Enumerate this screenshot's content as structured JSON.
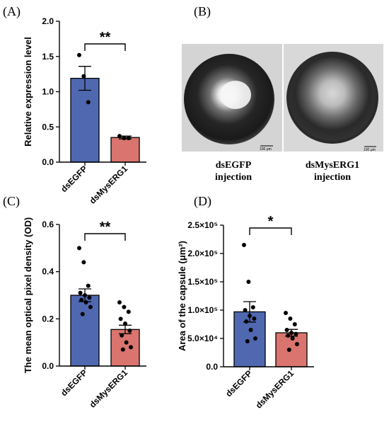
{
  "panel_labels": [
    "(A)",
    "(B)",
    "(C)",
    "(D)"
  ],
  "images": {
    "left_caption_line1": "dsEGFP",
    "left_caption_line2": "injection",
    "right_caption_line1": "dsMysERG1",
    "right_caption_line2": "injection",
    "left_scalebar_text": "100 μm",
    "right_scalebar_text": "100 μm"
  },
  "colors": {
    "blue": "#4f68b0",
    "red": "#d9756e",
    "outline": "#000000"
  },
  "chart_data": [
    {
      "panel": "(A)",
      "type": "bar",
      "categories": [
        "dsEGFP",
        "dsMysERG1"
      ],
      "values": [
        1.19,
        0.35
      ],
      "errors": [
        0.17,
        0.02
      ],
      "points": [
        [
          1.52,
          1.22,
          0.85
        ],
        [
          0.37,
          0.34,
          0.34
        ]
      ],
      "ylabel": "Relative expression level",
      "ylim": [
        0,
        2.0
      ],
      "yticks": [
        0,
        0.5,
        1.0,
        1.5,
        2.0
      ],
      "ytick_labels": [
        "0.0",
        "0.5",
        "1.0",
        "1.5",
        "2.0"
      ],
      "significance": "**",
      "colors": [
        "#4f68b0",
        "#d9756e"
      ]
    },
    {
      "panel": "(C)",
      "type": "bar",
      "categories": [
        "dsEGFP",
        "dsMysERG1"
      ],
      "values": [
        0.3,
        0.155
      ],
      "errors": [
        0.027,
        0.018
      ],
      "points": [
        [
          0.5,
          0.44,
          0.34,
          0.31,
          0.3,
          0.29,
          0.28,
          0.27,
          0.25,
          0.22
        ],
        [
          0.27,
          0.25,
          0.23,
          0.2,
          0.18,
          0.15,
          0.13,
          0.1,
          0.08,
          0.07
        ]
      ],
      "ylabel": "The mean optical pixel density (OD)",
      "ylim": [
        0,
        0.6
      ],
      "yticks": [
        0,
        0.2,
        0.4,
        0.6
      ],
      "ytick_labels": [
        "0.0",
        "0.2",
        "0.4",
        "0.6"
      ],
      "significance": "**",
      "colors": [
        "#4f68b0",
        "#d9756e"
      ]
    },
    {
      "panel": "(D)",
      "type": "bar",
      "categories": [
        "dsEGFP",
        "dsMysERG1"
      ],
      "values": [
        97000,
        60000
      ],
      "errors": [
        18000,
        6000
      ],
      "points": [
        [
          215000,
          150000,
          105000,
          100000,
          90000,
          85000,
          80000,
          65000,
          50000,
          45000
        ],
        [
          95000,
          85000,
          75000,
          65000,
          60000,
          58000,
          55000,
          50000,
          40000,
          30000
        ]
      ],
      "ylabel": "Area of the capsule (μm²)",
      "ylim": [
        0,
        250000
      ],
      "yticks": [
        0,
        50000,
        100000,
        150000,
        200000,
        250000
      ],
      "ytick_labels": [
        "0.0",
        "5.0×10⁴",
        "1.0×10⁵",
        "1.5×10⁵",
        "2.0×10⁵",
        "2.5×10⁵"
      ],
      "significance": "*",
      "colors": [
        "#4f68b0",
        "#d9756e"
      ]
    }
  ]
}
